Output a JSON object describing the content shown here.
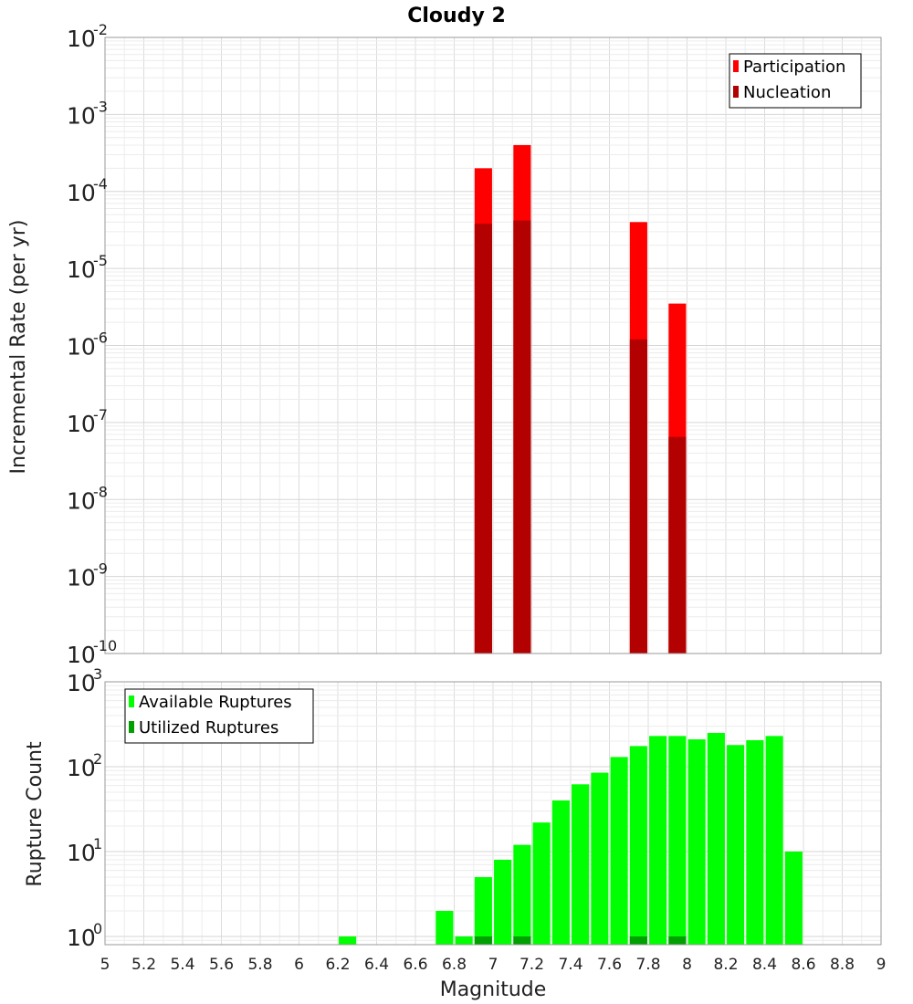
{
  "chart_data": {
    "title": "Cloudy 2",
    "xlabel": "Magnitude",
    "xlim": [
      5,
      9
    ],
    "x_ticks": [
      "5",
      "5.2",
      "5.4",
      "5.6",
      "5.8",
      "6",
      "6.2",
      "6.4",
      "6.6",
      "6.8",
      "7",
      "7.2",
      "7.4",
      "7.6",
      "7.8",
      "8",
      "8.2",
      "8.4",
      "8.6",
      "8.8",
      "9"
    ],
    "bar_width": 0.09,
    "grid": true,
    "panels": [
      {
        "type": "bar",
        "ylabel": "Incremental Rate (per yr)",
        "yscale": "log",
        "ylim": [
          1e-10,
          0.01
        ],
        "y_ticks": [
          {
            "base": "10",
            "exp": "-10"
          },
          {
            "base": "10",
            "exp": "-9"
          },
          {
            "base": "10",
            "exp": "-8"
          },
          {
            "base": "10",
            "exp": "-7"
          },
          {
            "base": "10",
            "exp": "-6"
          },
          {
            "base": "10",
            "exp": "-5"
          },
          {
            "base": "10",
            "exp": "-4"
          },
          {
            "base": "10",
            "exp": "-3"
          },
          {
            "base": "10",
            "exp": "-2"
          }
        ],
        "legend_position": "top-right",
        "series": [
          {
            "name": "Participation",
            "color": "#ff0000",
            "x": [
              6.95,
              7.15,
              7.75,
              7.95
            ],
            "values": [
              0.0002,
              0.0004,
              4e-05,
              3.5e-06
            ]
          },
          {
            "name": "Nucleation",
            "color": "#b30000",
            "x": [
              6.95,
              7.15,
              7.75,
              7.95
            ],
            "values": [
              3.8e-05,
              4.2e-05,
              1.2e-06,
              6.5e-08
            ]
          }
        ]
      },
      {
        "type": "bar",
        "ylabel": "Rupture Count",
        "yscale": "log",
        "ylim": [
          0.8,
          1000
        ],
        "y_ticks": [
          {
            "value": 1,
            "base": "10",
            "exp": "0"
          },
          {
            "value": 10,
            "base": "10",
            "exp": "1"
          },
          {
            "value": 100,
            "base": "10",
            "exp": "2"
          },
          {
            "value": 1000,
            "base": "10",
            "exp": "3"
          }
        ],
        "legend_position": "top-left",
        "series": [
          {
            "name": "Available Ruptures",
            "color": "#00ff00",
            "x": [
              6.25,
              6.75,
              6.85,
              6.95,
              7.05,
              7.15,
              7.25,
              7.35,
              7.45,
              7.55,
              7.65,
              7.75,
              7.85,
              7.95,
              8.05,
              8.15,
              8.25,
              8.35,
              8.45,
              8.55
            ],
            "values": [
              1,
              2,
              1,
              5,
              8,
              12,
              22,
              40,
              62,
              85,
              130,
              175,
              230,
              230,
              210,
              250,
              180,
              205,
              230,
              10
            ]
          },
          {
            "name": "Utilized Ruptures",
            "color": "#00a000",
            "x": [
              6.95,
              7.15,
              7.75,
              7.95
            ],
            "values": [
              1,
              1,
              1,
              1
            ]
          }
        ]
      }
    ]
  }
}
